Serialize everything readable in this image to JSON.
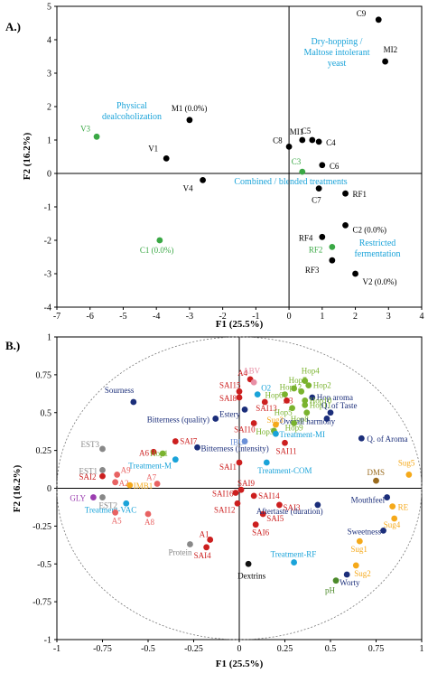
{
  "chart_data": [
    {
      "type": "scatter",
      "panel_label": "A.)",
      "xlabel": "F1 (25.5%)",
      "ylabel": "F2 (16.2%)",
      "xlim": [
        -7,
        4
      ],
      "ylim": [
        -4,
        5
      ],
      "xticks": [
        -7,
        -6,
        -5,
        -4,
        -3,
        -2,
        -1,
        0,
        1,
        2,
        3,
        4
      ],
      "yticks": [
        -4,
        -3,
        -2,
        -1,
        0,
        1,
        2,
        3,
        4,
        5
      ],
      "grid": false,
      "points": [
        {
          "label": "C9",
          "x": 2.7,
          "y": 4.6,
          "color": "#000000"
        },
        {
          "label": "MI2",
          "x": 2.9,
          "y": 3.35,
          "color": "#000000"
        },
        {
          "label": "M1 (0.0%)",
          "x": -3.0,
          "y": 1.6,
          "color": "#000000"
        },
        {
          "label": "V3",
          "x": -5.8,
          "y": 1.1,
          "color": "#3aa845"
        },
        {
          "label": "V1",
          "x": -3.7,
          "y": 0.45,
          "color": "#000000"
        },
        {
          "label": "MI1",
          "x": 0.4,
          "y": 1.0,
          "color": "#000000"
        },
        {
          "label": "C5",
          "x": 0.7,
          "y": 1.0,
          "color": "#000000"
        },
        {
          "label": "C4",
          "x": 0.9,
          "y": 0.95,
          "color": "#000000"
        },
        {
          "label": "C8",
          "x": 0.0,
          "y": 0.8,
          "color": "#000000"
        },
        {
          "label": "C3",
          "x": 0.4,
          "y": 0.05,
          "color": "#3aa845"
        },
        {
          "label": "C6",
          "x": 1.0,
          "y": 0.25,
          "color": "#000000"
        },
        {
          "label": "V4",
          "x": -2.6,
          "y": -0.2,
          "color": "#000000"
        },
        {
          "label": "C7",
          "x": 0.9,
          "y": -0.45,
          "color": "#000000"
        },
        {
          "label": "RF1",
          "x": 1.7,
          "y": -0.6,
          "color": "#000000"
        },
        {
          "label": "C2 (0.0%)",
          "x": 1.7,
          "y": -1.55,
          "color": "#000000"
        },
        {
          "label": "C1 (0.0%)",
          "x": -3.9,
          "y": -2.0,
          "color": "#3aa845"
        },
        {
          "label": "RF4",
          "x": 1.0,
          "y": -1.9,
          "color": "#000000"
        },
        {
          "label": "RF2",
          "x": 1.3,
          "y": -2.2,
          "color": "#3aa845"
        },
        {
          "label": "RF3",
          "x": 1.3,
          "y": -2.6,
          "color": "#000000"
        },
        {
          "label": "V2 (0.0%)",
          "x": 2.0,
          "y": -3.0,
          "color": "#000000"
        }
      ],
      "annotations": [
        {
          "text": [
            "Dry-hopping /",
            "Maltose intolerant",
            "yeast"
          ]
        },
        {
          "text": [
            "Physical",
            "dealcoholization"
          ]
        },
        {
          "text": [
            "Combined / blended treatments"
          ]
        },
        {
          "text": [
            "Restricted",
            "fermentation"
          ]
        }
      ]
    },
    {
      "type": "scatter",
      "panel_label": "B.)",
      "xlabel": "F1 (25.5%)",
      "ylabel": "F2 (16.2%)",
      "xlim": [
        -1,
        1
      ],
      "ylim": [
        -1,
        1
      ],
      "xticks": [
        -1,
        -0.75,
        -0.5,
        -0.25,
        0,
        0.25,
        0.5,
        0.75,
        1
      ],
      "yticks": [
        -1,
        -0.75,
        -0.5,
        -0.25,
        0,
        0.25,
        0.5,
        0.75,
        1
      ],
      "grid": false,
      "correlation_circle": true,
      "points": [
        {
          "label": "Sourness",
          "x": -0.58,
          "y": 0.57,
          "color": "#1b2e7a"
        },
        {
          "label": "A4",
          "x": 0.06,
          "y": 0.72,
          "color": "#cc1f1f"
        },
        {
          "label": "ABV",
          "x": 0.08,
          "y": 0.7,
          "color": "#e88fa5"
        },
        {
          "label": "SAI15",
          "x": 0.0,
          "y": 0.64,
          "color": "#cc1f1f"
        },
        {
          "label": "O2",
          "x": 0.1,
          "y": 0.62,
          "color": "#1aa3d9"
        },
        {
          "label": "SAI8",
          "x": 0.0,
          "y": 0.6,
          "color": "#cc1f1f"
        },
        {
          "label": "SAI13",
          "x": 0.14,
          "y": 0.57,
          "color": "#cc1f1f"
        },
        {
          "label": "Estery",
          "x": 0.03,
          "y": 0.52,
          "color": "#1b2e7a"
        },
        {
          "label": "Hop7",
          "x": 0.3,
          "y": 0.66,
          "color": "#7ab32e"
        },
        {
          "label": "Hop4",
          "x": 0.36,
          "y": 0.71,
          "color": "#7ab32e"
        },
        {
          "label": "Hop2",
          "x": 0.38,
          "y": 0.68,
          "color": "#7ab32e"
        },
        {
          "label": "Hop12",
          "x": 0.34,
          "y": 0.64,
          "color": "#7ab32e"
        },
        {
          "label": "Hop6",
          "x": 0.25,
          "y": 0.62,
          "color": "#7ab32e"
        },
        {
          "label": "Hop aroma",
          "x": 0.4,
          "y": 0.6,
          "color": "#1b2e7a"
        },
        {
          "label": "Hop10",
          "x": 0.36,
          "y": 0.58,
          "color": "#7ab32e"
        },
        {
          "label": "Hop11",
          "x": 0.36,
          "y": 0.55,
          "color": "#7ab32e"
        },
        {
          "label": "A3",
          "x": 0.26,
          "y": 0.58,
          "color": "#cc1f1f"
        },
        {
          "label": "Hop5",
          "x": 0.29,
          "y": 0.53,
          "color": "#7ab32e"
        },
        {
          "label": "Hop8",
          "x": 0.37,
          "y": 0.5,
          "color": "#7ab32e"
        },
        {
          "label": "Q. of Taste",
          "x": 0.5,
          "y": 0.5,
          "color": "#1b2e7a"
        },
        {
          "label": "Overall harmony",
          "x": 0.48,
          "y": 0.46,
          "color": "#1b2e7a"
        },
        {
          "label": "Bitterness (quality)",
          "x": -0.13,
          "y": 0.46,
          "color": "#1b2e7a"
        },
        {
          "label": "SAI10",
          "x": 0.08,
          "y": 0.43,
          "color": "#cc1f1f"
        },
        {
          "label": "Sug3",
          "x": 0.2,
          "y": 0.42,
          "color": "#f5a91a"
        },
        {
          "label": "Hop9",
          "x": 0.3,
          "y": 0.43,
          "color": "#7ab32e"
        },
        {
          "label": "Hop3",
          "x": 0.19,
          "y": 0.38,
          "color": "#7ab32e"
        },
        {
          "label": "Treatment-MI",
          "x": 0.2,
          "y": 0.36,
          "color": "#1aa3d9"
        },
        {
          "label": "Q. of Aroma",
          "x": 0.67,
          "y": 0.33,
          "color": "#1b2e7a"
        },
        {
          "label": "SAI11",
          "x": 0.25,
          "y": 0.3,
          "color": "#cc1f1f"
        },
        {
          "label": "SAI7",
          "x": -0.35,
          "y": 0.31,
          "color": "#cc1f1f"
        },
        {
          "label": "IBU",
          "x": 0.03,
          "y": 0.31,
          "color": "#6a90d8"
        },
        {
          "label": "Bitterness (intensity)",
          "x": -0.23,
          "y": 0.27,
          "color": "#1b2e7a"
        },
        {
          "label": "A6",
          "x": -0.47,
          "y": 0.24,
          "color": "#cc1f1f"
        },
        {
          "label": "Hop1",
          "x": -0.42,
          "y": 0.23,
          "color": "#7ab32e"
        },
        {
          "label": "EST3",
          "x": -0.75,
          "y": 0.26,
          "color": "#888888"
        },
        {
          "label": "Treatment-M",
          "x": -0.35,
          "y": 0.19,
          "color": "#1aa3d9"
        },
        {
          "label": "SAI1",
          "x": 0.0,
          "y": 0.17,
          "color": "#cc1f1f"
        },
        {
          "label": "Treatment-COM",
          "x": 0.15,
          "y": 0.17,
          "color": "#1aa3d9"
        },
        {
          "label": "EST1",
          "x": -0.75,
          "y": 0.12,
          "color": "#888888"
        },
        {
          "label": "SAI2",
          "x": -0.75,
          "y": 0.08,
          "color": "#cc1f1f"
        },
        {
          "label": "A9",
          "x": -0.67,
          "y": 0.09,
          "color": "#e86262"
        },
        {
          "label": "A2",
          "x": -0.68,
          "y": 0.04,
          "color": "#e86262"
        },
        {
          "label": "IMB1",
          "x": -0.6,
          "y": 0.02,
          "color": "#f5a91a"
        },
        {
          "label": "A7",
          "x": -0.45,
          "y": 0.03,
          "color": "#e86262"
        },
        {
          "label": "DMS",
          "x": 0.75,
          "y": 0.05,
          "color": "#9a6b1e"
        },
        {
          "label": "Sug5",
          "x": 0.93,
          "y": 0.09,
          "color": "#f5a91a"
        },
        {
          "label": "GLY",
          "x": -0.8,
          "y": -0.06,
          "color": "#9b3db0"
        },
        {
          "label": "EST2",
          "x": -0.75,
          "y": -0.06,
          "color": "#888888"
        },
        {
          "label": "Treatment-VAC",
          "x": -0.62,
          "y": -0.1,
          "color": "#1aa3d9"
        },
        {
          "label": "A5",
          "x": -0.68,
          "y": -0.16,
          "color": "#e86262"
        },
        {
          "label": "A8",
          "x": -0.5,
          "y": -0.17,
          "color": "#e86262"
        },
        {
          "label": "SAI16",
          "x": -0.02,
          "y": -0.03,
          "color": "#cc1f1f"
        },
        {
          "label": "SAI9",
          "x": 0.01,
          "y": -0.01,
          "color": "#cc1f1f"
        },
        {
          "label": "SAI14",
          "x": 0.08,
          "y": -0.05,
          "color": "#cc1f1f"
        },
        {
          "label": "SAI12",
          "x": -0.01,
          "y": -0.1,
          "color": "#cc1f1f"
        },
        {
          "label": "SAI3",
          "x": 0.22,
          "y": -0.11,
          "color": "#cc1f1f"
        },
        {
          "label": "SAI5",
          "x": 0.13,
          "y": -0.17,
          "color": "#cc1f1f"
        },
        {
          "label": "SAI6",
          "x": 0.09,
          "y": -0.24,
          "color": "#cc1f1f"
        },
        {
          "label": "Mouthfeel",
          "x": 0.81,
          "y": -0.06,
          "color": "#1b2e7a"
        },
        {
          "label": "Aftertaste (duration)",
          "x": 0.43,
          "y": -0.11,
          "color": "#1b2e7a"
        },
        {
          "label": "RE",
          "x": 0.84,
          "y": -0.12,
          "color": "#f5a91a"
        },
        {
          "label": "Sug4",
          "x": 0.85,
          "y": -0.2,
          "color": "#f5a91a"
        },
        {
          "label": "Sweetness",
          "x": 0.79,
          "y": -0.28,
          "color": "#1b2e7a"
        },
        {
          "label": "Sug1",
          "x": 0.66,
          "y": -0.35,
          "color": "#f5a91a"
        },
        {
          "label": "Protein",
          "x": -0.27,
          "y": -0.37,
          "color": "#888888"
        },
        {
          "label": "A1",
          "x": -0.16,
          "y": -0.34,
          "color": "#cc1f1f"
        },
        {
          "label": "SAI4",
          "x": -0.18,
          "y": -0.39,
          "color": "#cc1f1f"
        },
        {
          "label": "Treatment-RF",
          "x": 0.3,
          "y": -0.49,
          "color": "#1aa3d9"
        },
        {
          "label": "Sug2",
          "x": 0.64,
          "y": -0.51,
          "color": "#f5a91a"
        },
        {
          "label": "Dextrins",
          "x": 0.05,
          "y": -0.5,
          "color": "#111111"
        },
        {
          "label": "Worty",
          "x": 0.59,
          "y": -0.57,
          "color": "#1b2e7a"
        },
        {
          "label": "pH",
          "x": 0.53,
          "y": -0.61,
          "color": "#4c8a2a"
        }
      ]
    }
  ]
}
